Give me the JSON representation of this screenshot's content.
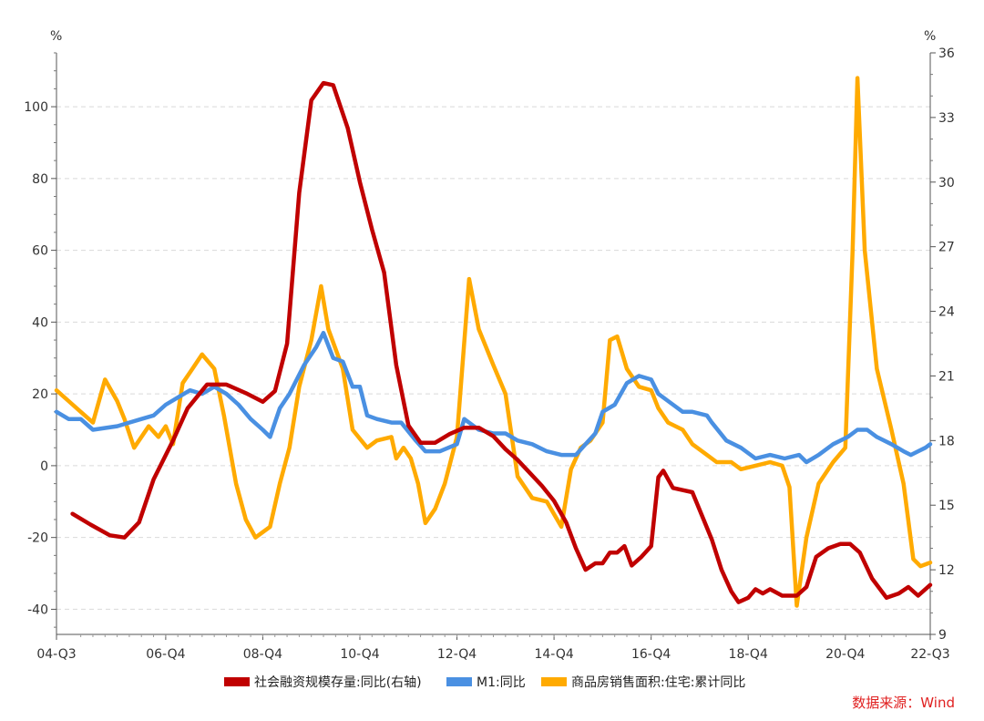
{
  "chart_data": {
    "type": "line",
    "left_axis": {
      "unit": "%",
      "ylim": [
        -47,
        115
      ],
      "ticks": [
        -40,
        -20,
        0,
        20,
        40,
        60,
        80,
        100
      ]
    },
    "right_axis": {
      "unit": "%",
      "ylim": [
        9,
        36
      ],
      "ticks": [
        9,
        12,
        15,
        18,
        21,
        24,
        27,
        30,
        33,
        36
      ]
    },
    "x_axis": {
      "tick_labels": [
        "04-Q3",
        "06-Q4",
        "08-Q4",
        "10-Q4",
        "12-Q4",
        "14-Q4",
        "16-Q4",
        "18-Q4",
        "20-Q4",
        "22-Q3"
      ],
      "tick_positions": [
        2004.5,
        2006.75,
        2008.75,
        2010.75,
        2012.75,
        2014.75,
        2016.75,
        2018.75,
        2020.75,
        2022.5
      ],
      "xlim": [
        2004.5,
        2022.5
      ]
    },
    "grid": "horizontal-dashed",
    "legend_position": "bottom",
    "source": "数据来源：Wind",
    "colors": {
      "red": "#c00000",
      "blue": "#4a90e2",
      "orange": "#ffaa00",
      "source_text": "#e02020"
    },
    "series": [
      {
        "name": "社会融资规模存量:同比(右轴)",
        "axis": "right",
        "color": "#c00000",
        "points": [
          [
            2004.83,
            14.6
          ],
          [
            2005.2,
            14.1
          ],
          [
            2005.6,
            13.6
          ],
          [
            2005.9,
            13.5
          ],
          [
            2006.2,
            14.2
          ],
          [
            2006.5,
            16.2
          ],
          [
            2006.9,
            18.0
          ],
          [
            2007.2,
            19.5
          ],
          [
            2007.6,
            20.6
          ],
          [
            2008.0,
            20.6
          ],
          [
            2008.4,
            20.2
          ],
          [
            2008.75,
            19.8
          ],
          [
            2009.0,
            20.3
          ],
          [
            2009.25,
            22.5
          ],
          [
            2009.5,
            29.5
          ],
          [
            2009.75,
            33.8
          ],
          [
            2010.0,
            34.6
          ],
          [
            2010.2,
            34.5
          ],
          [
            2010.5,
            32.5
          ],
          [
            2010.75,
            30.0
          ],
          [
            2011.0,
            27.8
          ],
          [
            2011.25,
            25.8
          ],
          [
            2011.5,
            21.5
          ],
          [
            2011.75,
            18.7
          ],
          [
            2012.0,
            17.9
          ],
          [
            2012.3,
            17.9
          ],
          [
            2012.6,
            18.3
          ],
          [
            2012.9,
            18.6
          ],
          [
            2013.2,
            18.6
          ],
          [
            2013.5,
            18.2
          ],
          [
            2013.75,
            17.6
          ],
          [
            2014.0,
            17.1
          ],
          [
            2014.25,
            16.5
          ],
          [
            2014.5,
            15.9
          ],
          [
            2014.75,
            15.2
          ],
          [
            2015.0,
            14.2
          ],
          [
            2015.2,
            13.0
          ],
          [
            2015.4,
            12.0
          ],
          [
            2015.6,
            12.3
          ],
          [
            2015.75,
            12.3
          ],
          [
            2015.9,
            12.8
          ],
          [
            2016.05,
            12.8
          ],
          [
            2016.2,
            13.1
          ],
          [
            2016.35,
            12.2
          ],
          [
            2016.55,
            12.6
          ],
          [
            2016.75,
            13.1
          ],
          [
            2016.9,
            16.3
          ],
          [
            2017.0,
            16.6
          ],
          [
            2017.2,
            15.8
          ],
          [
            2017.4,
            15.7
          ],
          [
            2017.6,
            15.6
          ],
          [
            2017.8,
            14.5
          ],
          [
            2018.0,
            13.4
          ],
          [
            2018.2,
            12.0
          ],
          [
            2018.4,
            11.0
          ],
          [
            2018.55,
            10.5
          ],
          [
            2018.75,
            10.7
          ],
          [
            2018.9,
            11.1
          ],
          [
            2019.05,
            10.9
          ],
          [
            2019.2,
            11.1
          ],
          [
            2019.45,
            10.8
          ],
          [
            2019.75,
            10.8
          ],
          [
            2019.95,
            11.2
          ],
          [
            2020.15,
            12.6
          ],
          [
            2020.4,
            13.0
          ],
          [
            2020.65,
            13.2
          ],
          [
            2020.85,
            13.2
          ],
          [
            2021.05,
            12.8
          ],
          [
            2021.3,
            11.6
          ],
          [
            2021.6,
            10.7
          ],
          [
            2021.85,
            10.9
          ],
          [
            2022.05,
            11.2
          ],
          [
            2022.25,
            10.8
          ],
          [
            2022.5,
            11.3
          ]
        ]
      },
      {
        "name": "M1:同比",
        "axis": "left",
        "color": "#4a90e2",
        "points": [
          [
            2004.5,
            15
          ],
          [
            2004.75,
            13
          ],
          [
            2005.0,
            13
          ],
          [
            2005.25,
            10
          ],
          [
            2005.75,
            11
          ],
          [
            2006.0,
            12
          ],
          [
            2006.25,
            13
          ],
          [
            2006.5,
            14
          ],
          [
            2006.75,
            17
          ],
          [
            2007.0,
            19
          ],
          [
            2007.25,
            21
          ],
          [
            2007.5,
            20
          ],
          [
            2007.75,
            22
          ],
          [
            2008.0,
            20
          ],
          [
            2008.25,
            17
          ],
          [
            2008.5,
            13
          ],
          [
            2008.75,
            10
          ],
          [
            2008.9,
            8
          ],
          [
            2009.1,
            16
          ],
          [
            2009.3,
            20
          ],
          [
            2009.6,
            28
          ],
          [
            2009.85,
            33
          ],
          [
            2010.0,
            37
          ],
          [
            2010.2,
            30
          ],
          [
            2010.4,
            29
          ],
          [
            2010.6,
            22
          ],
          [
            2010.75,
            22
          ],
          [
            2010.9,
            14
          ],
          [
            2011.1,
            13
          ],
          [
            2011.4,
            12
          ],
          [
            2011.6,
            12
          ],
          [
            2011.9,
            7
          ],
          [
            2012.1,
            4
          ],
          [
            2012.4,
            4
          ],
          [
            2012.75,
            6
          ],
          [
            2012.9,
            13
          ],
          [
            2013.2,
            10
          ],
          [
            2013.5,
            9
          ],
          [
            2013.75,
            9
          ],
          [
            2014.0,
            7
          ],
          [
            2014.3,
            6
          ],
          [
            2014.6,
            4
          ],
          [
            2014.9,
            3
          ],
          [
            2015.2,
            3
          ],
          [
            2015.4,
            6
          ],
          [
            2015.6,
            9
          ],
          [
            2015.75,
            15
          ],
          [
            2016.0,
            17
          ],
          [
            2016.25,
            23
          ],
          [
            2016.5,
            25
          ],
          [
            2016.75,
            24
          ],
          [
            2016.9,
            20
          ],
          [
            2017.1,
            18
          ],
          [
            2017.4,
            15
          ],
          [
            2017.6,
            15
          ],
          [
            2017.9,
            14
          ],
          [
            2018.0,
            12
          ],
          [
            2018.3,
            7
          ],
          [
            2018.6,
            5
          ],
          [
            2018.9,
            2
          ],
          [
            2019.2,
            3
          ],
          [
            2019.5,
            2
          ],
          [
            2019.8,
            3
          ],
          [
            2019.95,
            1
          ],
          [
            2020.2,
            3
          ],
          [
            2020.5,
            6
          ],
          [
            2020.8,
            8
          ],
          [
            2021.0,
            10
          ],
          [
            2021.2,
            10
          ],
          [
            2021.4,
            8
          ],
          [
            2021.7,
            6
          ],
          [
            2021.95,
            4
          ],
          [
            2022.1,
            3
          ],
          [
            2022.25,
            4
          ],
          [
            2022.4,
            5
          ],
          [
            2022.5,
            6
          ]
        ]
      },
      {
        "name": "商品房销售面积:住宅:累计同比",
        "axis": "left",
        "color": "#ffaa00",
        "points": [
          [
            2004.5,
            21
          ],
          [
            2004.75,
            18
          ],
          [
            2005.0,
            15
          ],
          [
            2005.25,
            12
          ],
          [
            2005.5,
            24
          ],
          [
            2005.75,
            18
          ],
          [
            2005.9,
            13
          ],
          [
            2006.1,
            5
          ],
          [
            2006.4,
            11
          ],
          [
            2006.6,
            8
          ],
          [
            2006.75,
            11
          ],
          [
            2006.9,
            6
          ],
          [
            2007.1,
            23
          ],
          [
            2007.3,
            27
          ],
          [
            2007.5,
            31
          ],
          [
            2007.75,
            27
          ],
          [
            2007.95,
            14
          ],
          [
            2008.2,
            -5
          ],
          [
            2008.4,
            -15
          ],
          [
            2008.6,
            -20
          ],
          [
            2008.9,
            -17
          ],
          [
            2009.1,
            -5
          ],
          [
            2009.3,
            5
          ],
          [
            2009.5,
            22
          ],
          [
            2009.75,
            35
          ],
          [
            2009.95,
            50
          ],
          [
            2010.1,
            38
          ],
          [
            2010.4,
            27
          ],
          [
            2010.6,
            10
          ],
          [
            2010.9,
            5
          ],
          [
            2011.1,
            7
          ],
          [
            2011.4,
            8
          ],
          [
            2011.5,
            2
          ],
          [
            2011.65,
            5
          ],
          [
            2011.8,
            2
          ],
          [
            2011.95,
            -5
          ],
          [
            2012.1,
            -16
          ],
          [
            2012.3,
            -12
          ],
          [
            2012.5,
            -5
          ],
          [
            2012.75,
            8
          ],
          [
            2013.0,
            52
          ],
          [
            2013.2,
            38
          ],
          [
            2013.5,
            28
          ],
          [
            2013.75,
            20
          ],
          [
            2014.0,
            -3
          ],
          [
            2014.3,
            -9
          ],
          [
            2014.6,
            -10
          ],
          [
            2014.9,
            -17
          ],
          [
            2015.1,
            -1
          ],
          [
            2015.3,
            5
          ],
          [
            2015.5,
            7
          ],
          [
            2015.75,
            12
          ],
          [
            2015.9,
            35
          ],
          [
            2016.05,
            36
          ],
          [
            2016.25,
            27
          ],
          [
            2016.5,
            22
          ],
          [
            2016.75,
            21
          ],
          [
            2016.9,
            16
          ],
          [
            2017.1,
            12
          ],
          [
            2017.4,
            10
          ],
          [
            2017.6,
            6
          ],
          [
            2017.9,
            3
          ],
          [
            2018.1,
            1
          ],
          [
            2018.4,
            1
          ],
          [
            2018.6,
            -1
          ],
          [
            2018.9,
            0
          ],
          [
            2019.2,
            1
          ],
          [
            2019.45,
            0
          ],
          [
            2019.6,
            -6
          ],
          [
            2019.75,
            -39
          ],
          [
            2019.95,
            -20
          ],
          [
            2020.2,
            -5
          ],
          [
            2020.5,
            1
          ],
          [
            2020.75,
            5
          ],
          [
            2020.9,
            60
          ],
          [
            2021.0,
            108
          ],
          [
            2021.15,
            60
          ],
          [
            2021.4,
            27
          ],
          [
            2021.7,
            10
          ],
          [
            2021.95,
            -5
          ],
          [
            2022.15,
            -26
          ],
          [
            2022.3,
            -28
          ],
          [
            2022.5,
            -27
          ]
        ]
      }
    ]
  }
}
